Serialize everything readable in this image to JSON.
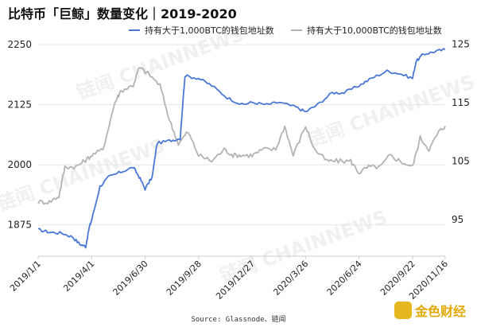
{
  "header": {
    "title": "比特币「巨鲸」数量变化｜2019-2020"
  },
  "watermark": {
    "text": "链闻 CHAINNEWS"
  },
  "logo": {
    "text": "金色财经"
  },
  "source": "Source: Glassnode、链闻",
  "colors": {
    "series1": "#4a78d6",
    "series2": "#b3b3b3"
  },
  "chart_data": {
    "type": "line",
    "title": "比特币「巨鲸」数量变化｜2019-2020",
    "x_categories": [
      "2019/1/1",
      "2019/4/1",
      "2019/6/30",
      "2019/9/28",
      "2019/12/27",
      "2020/3/26",
      "2020/6/24",
      "2020/9/22",
      "2020/11/16"
    ],
    "y_left": {
      "ticks": [
        "1875",
        "2000",
        "2125",
        "2250"
      ],
      "range": [
        1810,
        2270
      ]
    },
    "y_right": {
      "ticks": [
        "95",
        "105",
        "115",
        "125"
      ],
      "range": [
        88.7,
        126.6
      ]
    },
    "legend_position": "top",
    "series": [
      {
        "name": "持有大于1,000BTC的钱包地址数",
        "axis": "left",
        "points": [
          [
            "2019/1/1",
            1865
          ],
          [
            "2019/1/20",
            1860
          ],
          [
            "2019/2/10",
            1858
          ],
          [
            "2019/2/28",
            1850
          ],
          [
            "2019/3/12",
            1835
          ],
          [
            "2019/3/22",
            1830
          ],
          [
            "2019/3/28",
            1870
          ],
          [
            "2019/4/1",
            1885
          ],
          [
            "2019/4/15",
            1955
          ],
          [
            "2019/4/30",
            1975
          ],
          [
            "2019/5/20",
            1985
          ],
          [
            "2019/6/10",
            1995
          ],
          [
            "2019/6/20",
            1975
          ],
          [
            "2019/6/30",
            1950
          ],
          [
            "2019/7/12",
            1975
          ],
          [
            "2019/7/20",
            2045
          ],
          [
            "2019/8/10",
            2050
          ],
          [
            "2019/8/28",
            2055
          ],
          [
            "2019/9/5",
            2185
          ],
          [
            "2019/9/28",
            2180
          ],
          [
            "2019/10/20",
            2165
          ],
          [
            "2019/11/15",
            2140
          ],
          [
            "2019/12/10",
            2125
          ],
          [
            "2019/12/27",
            2130
          ],
          [
            "2020/1/20",
            2125
          ],
          [
            "2020/2/10",
            2130
          ],
          [
            "2020/3/10",
            2120
          ],
          [
            "2020/3/26",
            2110
          ],
          [
            "2020/4/15",
            2125
          ],
          [
            "2020/5/10",
            2150
          ],
          [
            "2020/5/30",
            2150
          ],
          [
            "2020/6/24",
            2165
          ],
          [
            "2020/7/15",
            2180
          ],
          [
            "2020/8/10",
            2195
          ],
          [
            "2020/8/31",
            2190
          ],
          [
            "2020/9/22",
            2180
          ],
          [
            "2020/9/28",
            2215
          ],
          [
            "2020/10/10",
            2230
          ],
          [
            "2020/10/28",
            2235
          ],
          [
            "2020/11/16",
            2240
          ]
        ]
      },
      {
        "name": "持有大于10,000BTC的钱包地址数",
        "axis": "right",
        "points": [
          [
            "2019/1/1",
            98
          ],
          [
            "2019/1/20",
            98
          ],
          [
            "2019/2/5",
            99
          ],
          [
            "2019/2/15",
            104
          ],
          [
            "2019/3/5",
            104
          ],
          [
            "2019/3/20",
            105
          ],
          [
            "2019/4/1",
            106
          ],
          [
            "2019/4/20",
            107
          ],
          [
            "2019/5/10",
            115
          ],
          [
            "2019/5/20",
            117
          ],
          [
            "2019/6/10",
            118
          ],
          [
            "2019/6/20",
            121
          ],
          [
            "2019/7/5",
            120
          ],
          [
            "2019/7/25",
            118
          ],
          [
            "2019/8/10",
            112
          ],
          [
            "2019/8/25",
            108
          ],
          [
            "2019/9/10",
            110
          ],
          [
            "2019/9/28",
            106
          ],
          [
            "2019/10/20",
            105
          ],
          [
            "2019/11/10",
            107
          ],
          [
            "2019/11/25",
            106
          ],
          [
            "2019/12/10",
            106
          ],
          [
            "2019/12/27",
            106
          ],
          [
            "2020/1/15",
            107
          ],
          [
            "2020/2/5",
            107
          ],
          [
            "2020/2/20",
            111
          ],
          [
            "2020/3/5",
            106
          ],
          [
            "2020/3/26",
            111
          ],
          [
            "2020/4/10",
            107
          ],
          [
            "2020/5/1",
            105
          ],
          [
            "2020/5/20",
            105
          ],
          [
            "2020/6/10",
            105
          ],
          [
            "2020/6/24",
            103
          ],
          [
            "2020/7/10",
            104
          ],
          [
            "2020/7/30",
            104
          ],
          [
            "2020/8/15",
            106
          ],
          [
            "2020/9/1",
            105
          ],
          [
            "2020/9/22",
            104
          ],
          [
            "2020/10/5",
            109
          ],
          [
            "2020/10/20",
            107
          ],
          [
            "2020/11/5",
            110
          ],
          [
            "2020/11/16",
            111
          ]
        ]
      }
    ]
  }
}
